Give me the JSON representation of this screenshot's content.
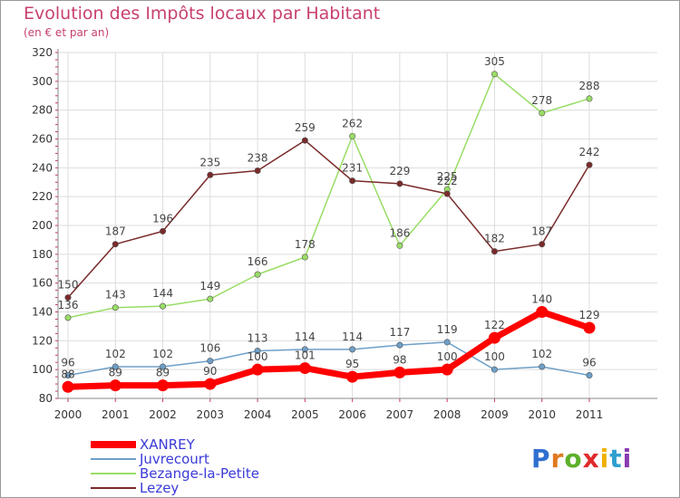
{
  "header": {
    "title": "Evolution des Impôts locaux par Habitant",
    "subtitle": "(en € et par an)"
  },
  "logo": {
    "text": "Proxiti",
    "colors": [
      "#2f6fd0",
      "#e07a1e",
      "#5db02a",
      "#e02a2a",
      "#f0b000",
      "#2f9fd0",
      "#8a3ab0"
    ]
  },
  "chart_data": {
    "type": "line",
    "title": "Evolution des Impôts locaux par Habitant",
    "subtitle": "(en € et par an)",
    "x": [
      "2000",
      "2001",
      "2002",
      "2003",
      "2004",
      "2005",
      "2006",
      "2007",
      "2008",
      "2009",
      "2010",
      "2011"
    ],
    "ylim": [
      80,
      320
    ],
    "yticks": [
      80,
      100,
      120,
      140,
      160,
      180,
      200,
      220,
      240,
      260,
      280,
      300,
      320
    ],
    "grid": true,
    "legend": "bottom-left",
    "series": [
      {
        "name": "XANREY",
        "color": "#ff0000",
        "width": 7,
        "values": [
          88,
          89,
          89,
          90,
          100,
          101,
          95,
          98,
          100,
          122,
          140,
          129
        ]
      },
      {
        "name": "Juvrecourt",
        "color": "#6e9fc8",
        "width": 1.5,
        "values": [
          96,
          102,
          102,
          106,
          113,
          114,
          114,
          117,
          119,
          100,
          102,
          96
        ]
      },
      {
        "name": "Bezange-la-Petite",
        "color": "#99dd66",
        "width": 1.5,
        "values": [
          136,
          143,
          144,
          149,
          166,
          178,
          262,
          186,
          225,
          305,
          278,
          288
        ]
      },
      {
        "name": "Lezey",
        "color": "#7a2a2a",
        "width": 1.5,
        "values": [
          150,
          187,
          196,
          235,
          238,
          259,
          231,
          229,
          222,
          182,
          187,
          242
        ]
      }
    ]
  }
}
